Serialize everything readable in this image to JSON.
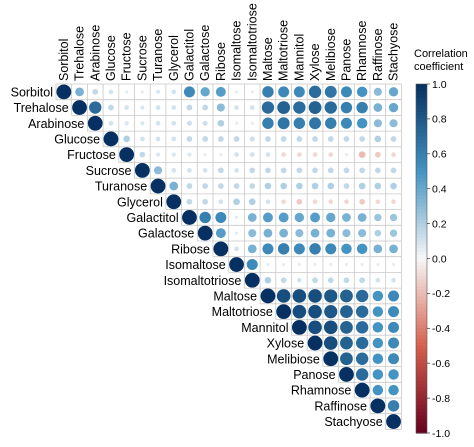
{
  "chart_data": {
    "type": "heatmap",
    "variables": [
      "Sorbitol",
      "Trehalose",
      "Arabinose",
      "Glucose",
      "Fructose",
      "Sucrose",
      "Turanose",
      "Glycerol",
      "Galactitol",
      "Galactose",
      "Ribose",
      "Isomaltose",
      "Isomaltotriose",
      "Maltose",
      "Maltotriose",
      "Mannitol",
      "Xylose",
      "Melibiose",
      "Panose",
      "Rhamnose",
      "Raffinose",
      "Stachyose"
    ],
    "layout": "upper-triangle",
    "values": [
      [
        1.0,
        0.35,
        0.15,
        0.1,
        0.05,
        0.05,
        0.08,
        0.1,
        0.55,
        0.4,
        0.45,
        0.05,
        0.05,
        0.6,
        0.55,
        0.55,
        0.7,
        0.65,
        0.55,
        0.5,
        0.3,
        0.4
      ],
      [
        null,
        1.0,
        0.7,
        0.15,
        0.1,
        0.08,
        0.1,
        0.1,
        0.15,
        0.15,
        0.3,
        0.1,
        0.1,
        0.7,
        0.75,
        0.7,
        0.75,
        0.7,
        0.6,
        0.6,
        0.35,
        0.4
      ],
      [
        null,
        null,
        1.0,
        0.1,
        0.08,
        0.08,
        0.1,
        0.1,
        0.12,
        0.12,
        0.2,
        0.05,
        0.05,
        0.6,
        0.65,
        0.6,
        0.65,
        0.6,
        0.55,
        0.5,
        0.3,
        0.3
      ],
      [
        null,
        null,
        null,
        1.0,
        0.2,
        0.1,
        0.1,
        0.1,
        0.15,
        0.15,
        0.15,
        0.15,
        0.12,
        0.15,
        0.15,
        0.15,
        0.15,
        0.15,
        0.15,
        0.15,
        0.2,
        0.15
      ],
      [
        null,
        null,
        null,
        null,
        1.0,
        0.15,
        0.08,
        0.08,
        0.08,
        0.05,
        0.05,
        0.1,
        0.1,
        0.1,
        -0.1,
        -0.1,
        -0.1,
        -0.1,
        -0.05,
        -0.2,
        -0.15,
        -0.1
      ],
      [
        null,
        null,
        null,
        null,
        null,
        1.0,
        0.3,
        0.1,
        0.1,
        0.1,
        0.15,
        0.1,
        0.15,
        0.15,
        0.15,
        0.15,
        0.15,
        0.15,
        0.15,
        0.15,
        0.15,
        0.15
      ],
      [
        null,
        null,
        null,
        null,
        null,
        null,
        1.0,
        0.35,
        0.15,
        0.15,
        0.15,
        0.15,
        0.15,
        0.2,
        0.2,
        0.2,
        0.2,
        0.2,
        0.15,
        0.2,
        0.2,
        0.2
      ],
      [
        null,
        null,
        null,
        null,
        null,
        null,
        null,
        1.0,
        0.15,
        0.15,
        0.1,
        0.2,
        0.2,
        0.1,
        -0.1,
        -0.15,
        -0.1,
        -0.1,
        -0.1,
        -0.15,
        -0.1,
        -0.1
      ],
      [
        null,
        null,
        null,
        null,
        null,
        null,
        null,
        null,
        1.0,
        0.6,
        0.55,
        0.05,
        0.35,
        0.45,
        0.45,
        0.4,
        0.45,
        0.4,
        0.35,
        0.35,
        0.25,
        0.25
      ],
      [
        null,
        null,
        null,
        null,
        null,
        null,
        null,
        null,
        null,
        1.0,
        0.45,
        0.05,
        0.3,
        0.35,
        0.35,
        0.3,
        0.35,
        0.35,
        0.3,
        0.3,
        0.2,
        0.25
      ],
      [
        null,
        null,
        null,
        null,
        null,
        null,
        null,
        null,
        null,
        null,
        1.0,
        0.1,
        0.35,
        0.55,
        0.6,
        0.55,
        0.6,
        0.55,
        0.5,
        0.5,
        0.35,
        0.35
      ],
      [
        null,
        null,
        null,
        null,
        null,
        null,
        null,
        null,
        null,
        null,
        null,
        1.0,
        0.55,
        0.05,
        0.05,
        -0.05,
        0.05,
        0.05,
        0.05,
        0.05,
        0.05,
        0.05
      ],
      [
        null,
        null,
        null,
        null,
        null,
        null,
        null,
        null,
        null,
        null,
        null,
        null,
        1.0,
        0.2,
        0.15,
        0.1,
        0.15,
        0.15,
        0.15,
        0.15,
        0.1,
        0.1
      ],
      [
        null,
        null,
        null,
        null,
        null,
        null,
        null,
        null,
        null,
        null,
        null,
        null,
        null,
        1.0,
        0.85,
        0.85,
        0.85,
        0.8,
        0.75,
        0.7,
        0.5,
        0.55
      ],
      [
        null,
        null,
        null,
        null,
        null,
        null,
        null,
        null,
        null,
        null,
        null,
        null,
        null,
        null,
        1.0,
        0.85,
        0.85,
        0.8,
        0.75,
        0.7,
        0.5,
        0.55
      ],
      [
        null,
        null,
        null,
        null,
        null,
        null,
        null,
        null,
        null,
        null,
        null,
        null,
        null,
        null,
        null,
        1.0,
        0.85,
        0.85,
        0.75,
        0.7,
        0.5,
        0.55
      ],
      [
        null,
        null,
        null,
        null,
        null,
        null,
        null,
        null,
        null,
        null,
        null,
        null,
        null,
        null,
        null,
        null,
        1.0,
        0.85,
        0.75,
        0.7,
        0.5,
        0.55
      ],
      [
        null,
        null,
        null,
        null,
        null,
        null,
        null,
        null,
        null,
        null,
        null,
        null,
        null,
        null,
        null,
        null,
        null,
        1.0,
        0.75,
        0.7,
        0.5,
        0.55
      ],
      [
        null,
        null,
        null,
        null,
        null,
        null,
        null,
        null,
        null,
        null,
        null,
        null,
        null,
        null,
        null,
        null,
        null,
        null,
        1.0,
        0.7,
        0.5,
        0.5
      ],
      [
        null,
        null,
        null,
        null,
        null,
        null,
        null,
        null,
        null,
        null,
        null,
        null,
        null,
        null,
        null,
        null,
        null,
        null,
        null,
        1.0,
        0.5,
        0.5
      ],
      [
        null,
        null,
        null,
        null,
        null,
        null,
        null,
        null,
        null,
        null,
        null,
        null,
        null,
        null,
        null,
        null,
        null,
        null,
        null,
        null,
        1.0,
        0.6
      ],
      [
        null,
        null,
        null,
        null,
        null,
        null,
        null,
        null,
        null,
        null,
        null,
        null,
        null,
        null,
        null,
        null,
        null,
        null,
        null,
        null,
        null,
        1.0
      ]
    ],
    "colorbar": {
      "title": "Correlation coefficient",
      "title_lines": [
        "Correlation",
        "coefficient"
      ],
      "range": [
        -1.0,
        1.0
      ],
      "ticks": [
        "1.0",
        "0.8",
        "0.6",
        "0.4",
        "0.2",
        "0.0",
        "-0.2",
        "-0.4",
        "-0.6",
        "-0.8",
        "-1.0"
      ],
      "colors": {
        "neg_end": "#67001f",
        "neg_mid": "#d6604d",
        "neutral": "#f7f7f7",
        "pos_mid": "#4393c3",
        "pos_end": "#053061"
      }
    },
    "legend_position": "right",
    "grid": true
  }
}
